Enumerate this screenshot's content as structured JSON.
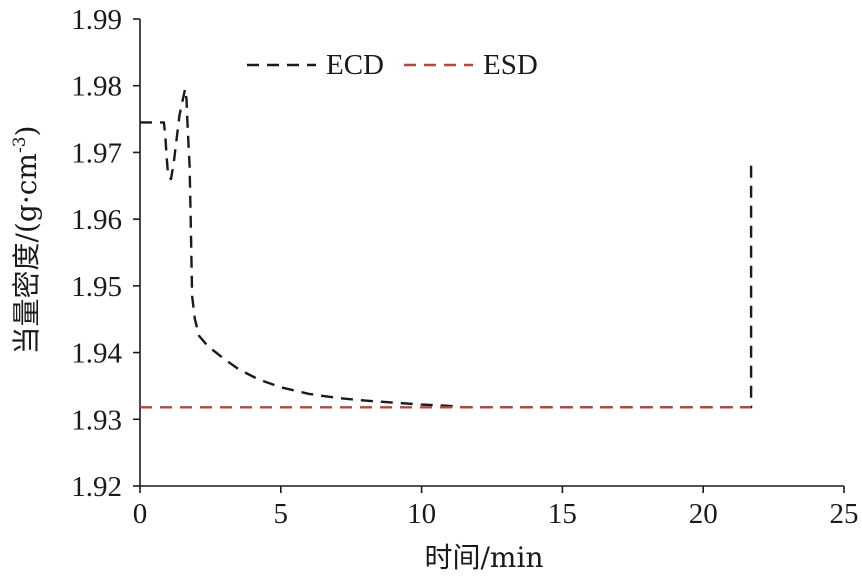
{
  "chart_data": {
    "type": "line",
    "xlabel": "时间/min",
    "ylabel_main": "当量密度/(g·cm",
    "ylabel_sup": "-3",
    "ylabel_close": ")",
    "xlim": [
      0,
      25
    ],
    "ylim": [
      1.92,
      1.99
    ],
    "xticks": [
      0,
      5,
      10,
      15,
      20,
      25
    ],
    "xtick_labels": [
      "0",
      "5",
      "10",
      "15",
      "20",
      "25"
    ],
    "yticks": [
      1.92,
      1.93,
      1.94,
      1.95,
      1.96,
      1.97,
      1.98,
      1.99
    ],
    "ytick_labels": [
      "1.92",
      "1.93",
      "1.94",
      "1.95",
      "1.96",
      "1.97",
      "1.98",
      "1.99"
    ],
    "grid": false,
    "legend_position": "top",
    "series": [
      {
        "name": "ECD",
        "color": "#1a1a1a",
        "dash": "dashed",
        "x": [
          0.0,
          0.5,
          0.85,
          0.9,
          0.95,
          1.0,
          1.1,
          1.2,
          1.3,
          1.4,
          1.5,
          1.6,
          1.65,
          1.68,
          1.72,
          1.76,
          1.8,
          1.85,
          1.95,
          2.1,
          2.4,
          3.0,
          3.5,
          4.2,
          5.0,
          6.0,
          7.0,
          8.0,
          9.0,
          10.0,
          11.0,
          11.5,
          12.0,
          13.0,
          15.0,
          17.0,
          19.0,
          21.0,
          21.7,
          21.7
        ],
        "y": [
          1.9745,
          1.9745,
          1.9745,
          1.9725,
          1.969,
          1.9665,
          1.966,
          1.9685,
          1.972,
          1.9755,
          1.9775,
          1.9795,
          1.978,
          1.975,
          1.9715,
          1.968,
          1.96,
          1.9485,
          1.945,
          1.9425,
          1.941,
          1.939,
          1.9375,
          1.936,
          1.9348,
          1.9338,
          1.9332,
          1.9328,
          1.9325,
          1.9322,
          1.932,
          1.9318,
          1.9318,
          1.9318,
          1.9318,
          1.9318,
          1.9318,
          1.9318,
          1.9318,
          1.969
        ]
      },
      {
        "name": "ESD",
        "color": "#b5473f",
        "dash": "dashed",
        "x": [
          0.0,
          21.7
        ],
        "y": [
          1.9318,
          1.9318
        ]
      }
    ]
  }
}
